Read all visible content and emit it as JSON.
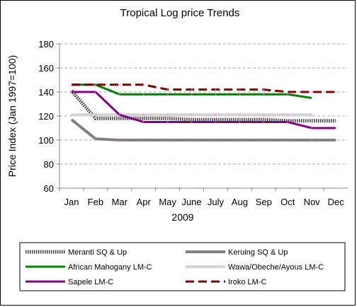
{
  "chart_data": {
    "type": "line",
    "title": "Tropical Log price Trends",
    "xlabel": "2009",
    "ylabel": "Price Index (Jan 1997=100)",
    "ylim": [
      60,
      180
    ],
    "yticks": [
      60,
      80,
      100,
      120,
      140,
      160,
      180
    ],
    "grid": "horizontal dashed",
    "categories": [
      "Jan",
      "Feb",
      "Mar",
      "Apr",
      "May",
      "June",
      "July",
      "Aug",
      "Sep",
      "Oct",
      "Nov",
      "Dec"
    ],
    "legend_position": "bottom",
    "series": [
      {
        "name": "Meranti SQ & Up",
        "color": "#404040",
        "style": "dotted-thick",
        "values": [
          141,
          118,
          118,
          118,
          118,
          117,
          117,
          117,
          117,
          116,
          116,
          116
        ]
      },
      {
        "name": "Keruing SQ & Up",
        "color": "#808080",
        "style": "solid-thick",
        "values": [
          117,
          101,
          100,
          100,
          100,
          100,
          100,
          100,
          100,
          100,
          100,
          100
        ]
      },
      {
        "name": "African Mahogany LM-C",
        "color": "#008000",
        "style": "solid",
        "values": [
          146,
          146,
          138,
          138,
          138,
          138,
          138,
          138,
          138,
          138,
          135,
          null
        ]
      },
      {
        "name": "Wawa/Obeche/Ayous LM-C",
        "color": "#d3d3d3",
        "style": "solid-thick",
        "values": [
          121,
          121,
          121,
          121,
          121,
          121,
          121,
          121,
          121,
          121,
          121,
          null
        ]
      },
      {
        "name": "Sapele LM-C",
        "color": "#800080",
        "style": "solid",
        "values": [
          140,
          140,
          121,
          115,
          115,
          115,
          115,
          115,
          115,
          115,
          110,
          110
        ]
      },
      {
        "name": "Iroko LM-C",
        "color": "#800000",
        "style": "dashed",
        "values": [
          146,
          146,
          146,
          146,
          142,
          142,
          142,
          142,
          142,
          140,
          140,
          140
        ]
      }
    ]
  }
}
